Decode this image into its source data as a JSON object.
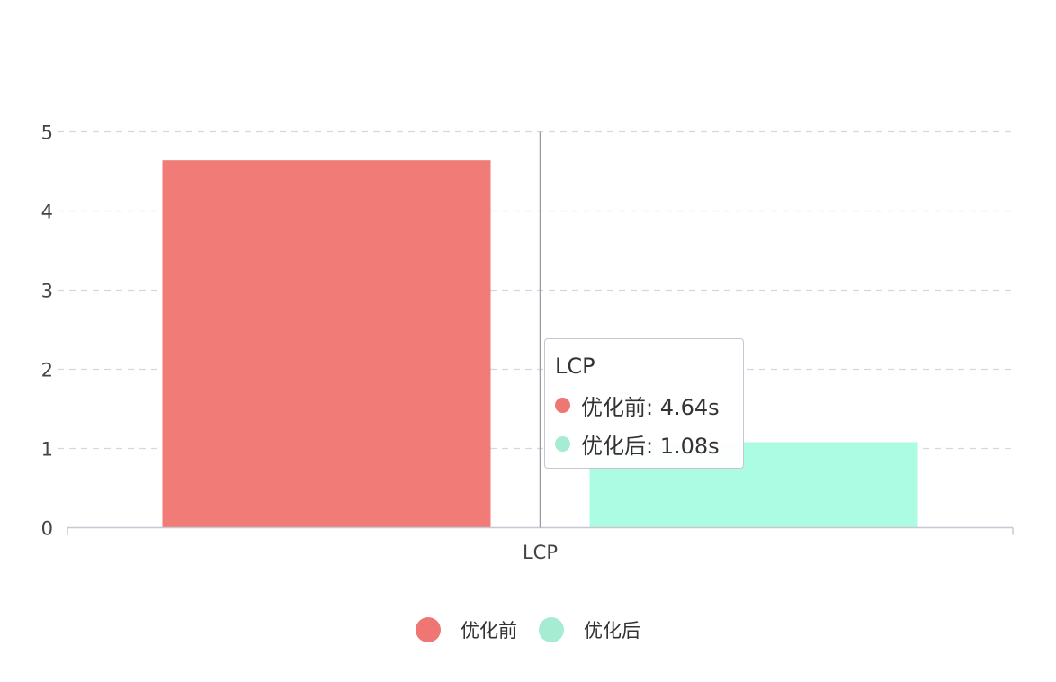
{
  "chart_data": {
    "type": "bar",
    "categories": [
      "LCP"
    ],
    "series": [
      {
        "name": "优化前",
        "values": [
          4.64
        ],
        "color": "#f07b77"
      },
      {
        "name": "优化后",
        "values": [
          1.08
        ],
        "color": "#abfce3"
      }
    ],
    "yticks": [
      "0",
      "1",
      "2",
      "3",
      "4",
      "5"
    ],
    "ylim": [
      0,
      5
    ],
    "grid": true,
    "legend_position": "bottom"
  },
  "legend": {
    "items": [
      {
        "label": "优化前",
        "color": "#ee7773"
      },
      {
        "label": "优化后",
        "color": "#a6ecd2"
      }
    ]
  },
  "tooltip": {
    "title": "LCP",
    "rows": [
      {
        "text": "优化前: 4.64s",
        "color": "#ee7773"
      },
      {
        "text": "优化后: 1.08s",
        "color": "#a6ecd2"
      }
    ]
  }
}
